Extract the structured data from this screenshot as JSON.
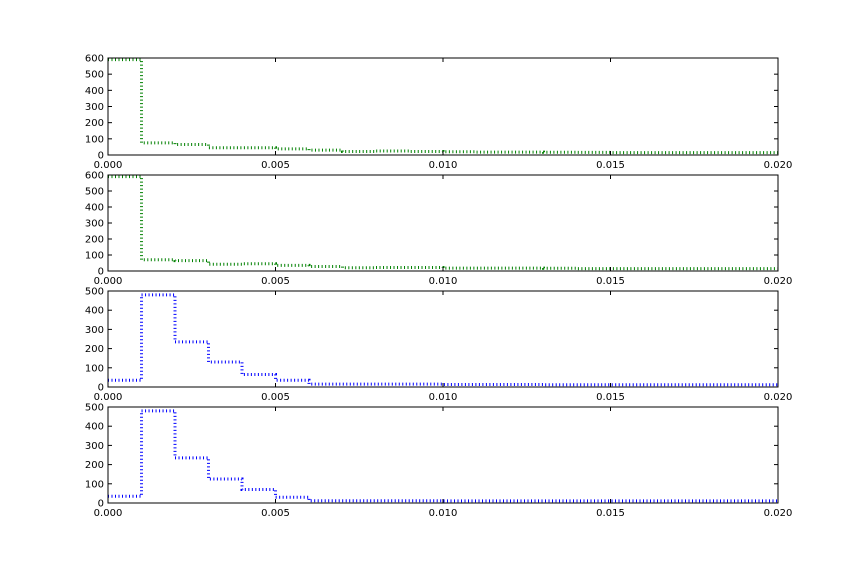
{
  "chart_data": [
    {
      "type": "line",
      "style": "dotted-step",
      "color": "#008000",
      "xlim": [
        0,
        0.02
      ],
      "ylim": [
        0,
        600
      ],
      "xticks": [
        "0.000",
        "0.005",
        "0.010",
        "0.015",
        "0.020"
      ],
      "yticks": [
        "0",
        "100",
        "200",
        "300",
        "400",
        "500",
        "600"
      ],
      "x": [
        0.0,
        0.001,
        0.002,
        0.003,
        0.004,
        0.005,
        0.006,
        0.007,
        0.008,
        0.009,
        0.01,
        0.011,
        0.012,
        0.013,
        0.014,
        0.015,
        0.016,
        0.017,
        0.018,
        0.019
      ],
      "values": [
        590,
        75,
        65,
        45,
        45,
        38,
        30,
        22,
        25,
        22,
        20,
        18,
        18,
        17,
        16,
        15,
        15,
        15,
        15,
        15
      ]
    },
    {
      "type": "line",
      "style": "dotted-step",
      "color": "#008000",
      "xlim": [
        0,
        0.02
      ],
      "ylim": [
        0,
        600
      ],
      "xticks": [
        "0.000",
        "0.005",
        "0.010",
        "0.015",
        "0.020"
      ],
      "yticks": [
        "0",
        "100",
        "200",
        "300",
        "400",
        "500",
        "600"
      ],
      "x": [
        0.0,
        0.001,
        0.002,
        0.003,
        0.004,
        0.005,
        0.006,
        0.007,
        0.008,
        0.009,
        0.01,
        0.011,
        0.012,
        0.013,
        0.014,
        0.015,
        0.016,
        0.017,
        0.018,
        0.019
      ],
      "values": [
        590,
        70,
        65,
        42,
        45,
        35,
        28,
        20,
        22,
        22,
        18,
        18,
        18,
        17,
        15,
        15,
        15,
        15,
        15,
        15
      ]
    },
    {
      "type": "line",
      "style": "dotted-step",
      "color": "#0000ff",
      "xlim": [
        0,
        0.02
      ],
      "ylim": [
        0,
        500
      ],
      "xticks": [
        "0.000",
        "0.005",
        "0.010",
        "0.015",
        "0.020"
      ],
      "yticks": [
        "0",
        "100",
        "200",
        "300",
        "400",
        "500"
      ],
      "x": [
        0.0,
        0.001,
        0.002,
        0.003,
        0.004,
        0.005,
        0.006,
        0.007,
        0.008,
        0.009,
        0.01,
        0.011,
        0.012,
        0.013,
        0.014,
        0.015,
        0.016,
        0.017,
        0.018,
        0.019
      ],
      "values": [
        35,
        480,
        235,
        130,
        65,
        35,
        15,
        15,
        15,
        15,
        13,
        13,
        13,
        12,
        12,
        12,
        12,
        12,
        12,
        12
      ]
    },
    {
      "type": "line",
      "style": "dotted-step",
      "color": "#0000ff",
      "xlim": [
        0,
        0.02
      ],
      "ylim": [
        0,
        500
      ],
      "xticks": [
        "0.000",
        "0.005",
        "0.010",
        "0.015",
        "0.020"
      ],
      "yticks": [
        "0",
        "100",
        "200",
        "300",
        "400",
        "500"
      ],
      "x": [
        0.0,
        0.001,
        0.002,
        0.003,
        0.004,
        0.005,
        0.006,
        0.007,
        0.008,
        0.009,
        0.01,
        0.011,
        0.012,
        0.013,
        0.014,
        0.015,
        0.016,
        0.017,
        0.018,
        0.019
      ],
      "values": [
        35,
        480,
        235,
        125,
        70,
        30,
        12,
        12,
        12,
        12,
        11,
        11,
        11,
        11,
        11,
        11,
        11,
        11,
        11,
        11
      ]
    }
  ]
}
